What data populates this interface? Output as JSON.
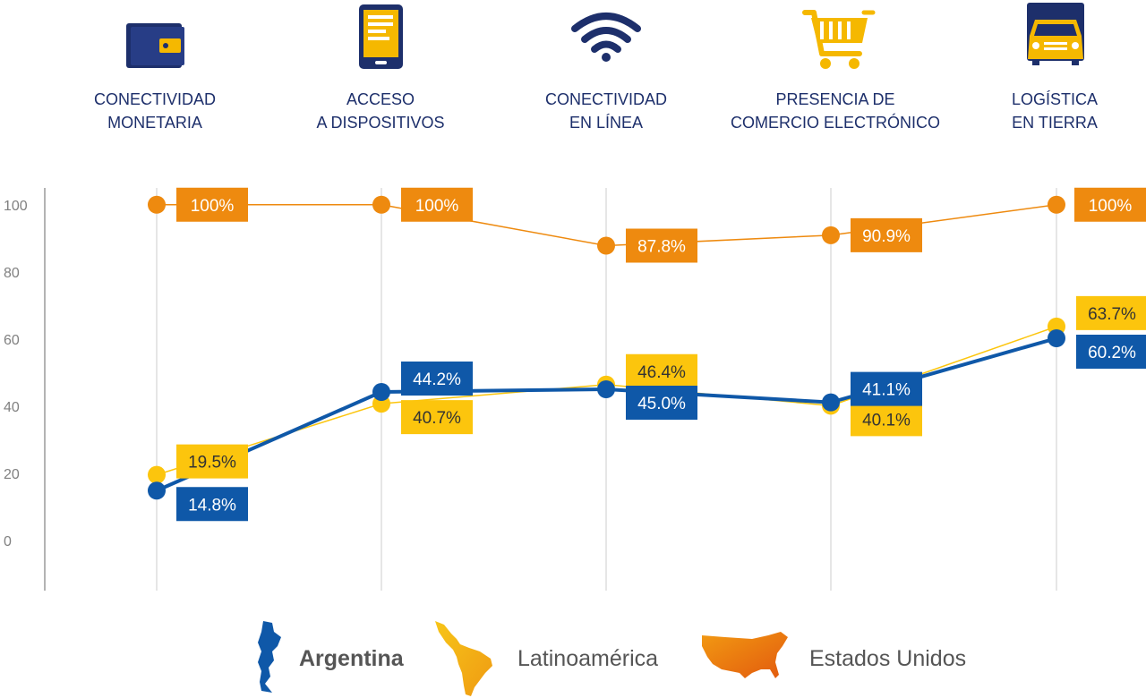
{
  "chart_data": {
    "type": "line",
    "categories": [
      [
        "CONECTIVIDAD",
        "MONETARIA"
      ],
      [
        "ACCESO",
        "A DISPOSITIVOS"
      ],
      [
        "CONECTIVIDAD",
        "EN LÍNEA"
      ],
      [
        "PRESENCIA DE",
        "COMERCIO ELECTRÓNICO"
      ],
      [
        "LOGÍSTICA",
        "EN TIERRA"
      ]
    ],
    "y_ticks": [
      "100",
      "80",
      "60",
      "40",
      "20",
      "0"
    ],
    "y_tick_values": [
      100,
      80,
      60,
      40,
      20,
      0
    ],
    "series": [
      {
        "name": "Estados Unidos",
        "color": "#ee8a0f",
        "values": [
          100,
          100,
          87.8,
          90.9,
          100
        ],
        "labels": [
          "100%",
          "100%",
          "87.8%",
          "90.9%",
          "100%"
        ]
      },
      {
        "name": "Latinoamérica",
        "color": "#fcc50d",
        "values": [
          19.5,
          40.7,
          46.4,
          40.1,
          63.7
        ],
        "labels": [
          "19.5%",
          "40.7%",
          "46.4%",
          "40.1%",
          "63.7%"
        ]
      },
      {
        "name": "Argentina",
        "color": "#0f58a8",
        "values": [
          14.8,
          44.2,
          45.0,
          41.1,
          60.2
        ],
        "labels": [
          "14.8%",
          "44.2%",
          "45.0%",
          "41.1%",
          "60.2%"
        ]
      }
    ],
    "legend": [
      {
        "name": "Argentina",
        "icon": "argentina-map-icon",
        "color": "#0f58a8"
      },
      {
        "name": "Latinoamérica",
        "icon": "latin-america-map-icon",
        "color": "#f2a615"
      },
      {
        "name": "Estados Unidos",
        "icon": "usa-map-icon",
        "color": "#e86f10"
      }
    ],
    "icons": [
      "wallet-icon",
      "tablet-icon",
      "wifi-icon",
      "shopping-cart-icon",
      "truck-icon"
    ],
    "ylim": [
      -15,
      105
    ]
  }
}
